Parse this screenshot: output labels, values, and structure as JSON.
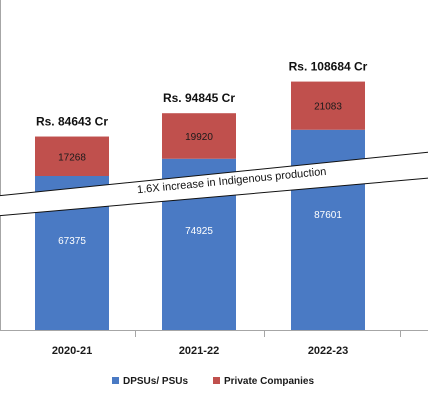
{
  "chart_data": {
    "type": "bar",
    "stacked": true,
    "categories": [
      "2020-21",
      "2021-22",
      "2022-23",
      ""
    ],
    "series": [
      {
        "name": "DPSUs/ PSUs",
        "values": [
          67375,
          74925,
          87601,
          null
        ],
        "color": "#4a7ac4"
      },
      {
        "name": "Private Companies",
        "values": [
          17268,
          19920,
          21083,
          null
        ],
        "color": "#c0504d"
      }
    ],
    "totals": [
      "Rs. 84643 Cr",
      "Rs. 94845 Cr",
      "Rs. 108684 Cr"
    ],
    "annotation": "1.6X increase in Indigenous production",
    "ylim": [
      0,
      140000
    ],
    "grid": false,
    "legend": "bottom",
    "title": "",
    "xlabel": "",
    "ylabel": ""
  }
}
